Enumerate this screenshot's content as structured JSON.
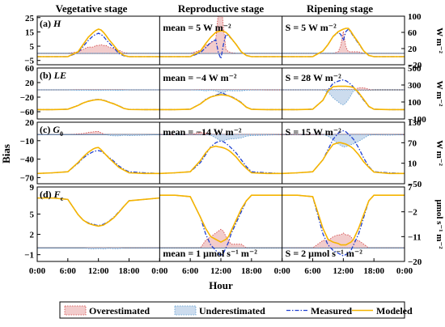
{
  "figure": {
    "stages": [
      "Vegetative stage",
      "Reproductive stage",
      "Ripening stage"
    ],
    "left_axis_label": "Bias",
    "x_axis_label": "Hour",
    "x_ticks": [
      "0:00",
      "6:00",
      "12:00",
      "18:00",
      "0:00",
      "6:00",
      "12:00",
      "18:00",
      "0:00",
      "6:00",
      "12:00",
      "18:00",
      "0:00"
    ],
    "legend": [
      {
        "label": "Overestimated",
        "kind": "fill",
        "color": "#f2cccc",
        "stroke": "#d04040"
      },
      {
        "label": "Underestimated",
        "kind": "fill",
        "color": "#ccdcee",
        "stroke": "#5a9ad0"
      },
      {
        "label": "Measured",
        "kind": "line",
        "color": "#1f3fd0"
      },
      {
        "label": "Modeled",
        "kind": "line",
        "color": "#f5b400"
      }
    ],
    "colors": {
      "over_fill": "#f2cccc",
      "over_line": "#d04040",
      "under_fill": "#ccdcee",
      "under_line": "#5a9ad0",
      "measured": "#1f3fd0",
      "modeled": "#f5b400"
    }
  },
  "chart_data": [
    {
      "type": "line",
      "panel": "(a)",
      "variable": "H",
      "mean_text": "mean = 5 W m⁻²",
      "s_text": "S = 5 W m⁻²",
      "right_unit": "W m⁻²",
      "left_ticks": [
        25,
        15,
        5,
        -5
      ],
      "left_range": [
        -8,
        26
      ],
      "right_ticks": [
        100,
        60,
        20,
        -20
      ],
      "right_range": [
        -20,
        100
      ],
      "x_hours": [
        0,
        3,
        6,
        8,
        9,
        10,
        11,
        11.5,
        12,
        12.5,
        13,
        13.5,
        14,
        15,
        16,
        17,
        18,
        21,
        24
      ],
      "stages": [
        {
          "stage": "Vegetative stage",
          "measured": [
            0,
            0,
            0,
            10,
            25,
            40,
            52,
            55,
            58,
            55,
            50,
            42,
            35,
            22,
            8,
            2,
            0,
            0,
            0
          ],
          "modeled": [
            0,
            0,
            0,
            12,
            30,
            48,
            60,
            65,
            68,
            66,
            60,
            52,
            43,
            28,
            12,
            3,
            0,
            0,
            0
          ]
        },
        {
          "stage": "Reproductive stage",
          "measured": [
            0,
            0,
            0,
            10,
            22,
            35,
            42,
            10,
            -5,
            30,
            55,
            52,
            45,
            30,
            12,
            3,
            0,
            0,
            0
          ],
          "modeled": [
            0,
            0,
            0,
            14,
            32,
            48,
            60,
            62,
            64,
            63,
            60,
            54,
            46,
            30,
            12,
            3,
            0,
            0,
            0
          ]
        },
        {
          "stage": "Ripening stage",
          "measured": [
            0,
            0,
            0,
            14,
            30,
            50,
            60,
            55,
            40,
            62,
            68,
            60,
            50,
            32,
            14,
            3,
            0,
            0,
            0
          ],
          "modeled": [
            0,
            0,
            0,
            14,
            30,
            50,
            62,
            65,
            68,
            70,
            70,
            62,
            52,
            34,
            14,
            3,
            0,
            0,
            0
          ]
        }
      ]
    },
    {
      "type": "line",
      "panel": "(b)",
      "variable": "LE",
      "mean_text": "mean = −4 W m⁻²",
      "s_text": "S = 28 W m⁻²",
      "right_unit": "W m⁻²",
      "left_ticks": [
        60,
        20,
        -20,
        -60
      ],
      "left_range": [
        -80,
        60
      ],
      "right_ticks": [
        500,
        300,
        100,
        -100
      ],
      "right_range": [
        -100,
        500
      ],
      "x_hours": [
        0,
        3,
        6,
        8,
        9,
        10,
        11,
        11.5,
        12,
        12.5,
        13,
        13.5,
        14,
        15,
        16,
        17,
        18,
        21,
        24
      ],
      "stages": [
        {
          "stage": "Vegetative stage",
          "measured": [
            10,
            10,
            15,
            60,
            90,
            110,
            125,
            128,
            130,
            128,
            120,
            112,
            100,
            80,
            55,
            25,
            12,
            10,
            10
          ],
          "modeled": [
            10,
            10,
            15,
            58,
            88,
            108,
            122,
            125,
            128,
            125,
            118,
            110,
            98,
            78,
            52,
            24,
            12,
            10,
            10
          ]
        },
        {
          "stage": "Reproductive stage",
          "measured": [
            10,
            10,
            15,
            80,
            130,
            160,
            180,
            190,
            210,
            200,
            185,
            175,
            165,
            135,
            95,
            40,
            15,
            10,
            10
          ],
          "modeled": [
            10,
            10,
            15,
            78,
            125,
            158,
            175,
            180,
            185,
            182,
            178,
            172,
            160,
            130,
            90,
            38,
            14,
            10,
            10
          ]
        },
        {
          "stage": "Ripening stage",
          "measured": [
            10,
            10,
            15,
            120,
            240,
            320,
            345,
            355,
            360,
            350,
            330,
            305,
            275,
            200,
            120,
            45,
            15,
            10,
            10
          ],
          "modeled": [
            10,
            10,
            15,
            120,
            230,
            280,
            285,
            285,
            285,
            285,
            282,
            278,
            270,
            210,
            130,
            48,
            15,
            10,
            10
          ]
        }
      ]
    },
    {
      "type": "line",
      "panel": "(c)",
      "variable": "G",
      "variable_sub": "0",
      "mean_text": "mean = −14 W m⁻²",
      "s_text": "S = 15 W m⁻²",
      "right_unit": "W m⁻²",
      "left_ticks": [
        20,
        -10,
        -40,
        -70
      ],
      "left_range": [
        -80,
        20
      ],
      "right_ticks": [
        130,
        70,
        10,
        -50
      ],
      "right_range": [
        -50,
        130
      ],
      "x_hours": [
        0,
        3,
        6,
        8,
        9,
        10,
        11,
        11.5,
        12,
        12.5,
        13,
        13.5,
        14,
        15,
        16,
        17,
        18,
        21,
        24
      ],
      "stages": [
        {
          "stage": "Vegetative stage",
          "measured": [
            -20,
            -18,
            -15,
            10,
            25,
            36,
            44,
            46,
            47,
            45,
            40,
            34,
            28,
            16,
            2,
            -8,
            -15,
            -18,
            -20
          ],
          "modeled": [
            -20,
            -18,
            -15,
            12,
            28,
            42,
            52,
            55,
            56,
            50,
            42,
            34,
            26,
            12,
            -2,
            -10,
            -18,
            -20,
            -20
          ]
        },
        {
          "stage": "Reproductive stage",
          "measured": [
            -20,
            -18,
            -15,
            12,
            35,
            58,
            70,
            73,
            75,
            73,
            68,
            62,
            55,
            40,
            20,
            0,
            -15,
            -18,
            -20
          ],
          "modeled": [
            -20,
            -18,
            -15,
            18,
            40,
            56,
            60,
            58,
            57,
            55,
            52,
            48,
            42,
            28,
            10,
            -5,
            -18,
            -20,
            -20
          ]
        },
        {
          "stage": "Ripening stage",
          "measured": [
            -20,
            -18,
            -15,
            20,
            50,
            80,
            98,
            102,
            105,
            102,
            95,
            88,
            80,
            55,
            25,
            0,
            -15,
            -18,
            -20
          ],
          "modeled": [
            -20,
            -18,
            -15,
            20,
            45,
            65,
            70,
            70,
            68,
            66,
            62,
            58,
            52,
            35,
            14,
            -2,
            -16,
            -20,
            -20
          ]
        }
      ]
    },
    {
      "type": "line",
      "panel": "(d)",
      "variable": "F",
      "variable_sub": "c",
      "mean_text": "mean = 1 μmol s⁻¹ m⁻²",
      "s_text": "S = 2 μmol s⁻¹ m⁻²",
      "right_unit": "μmol s⁻¹ m⁻²",
      "left_ticks": [
        9,
        5,
        2,
        -1
      ],
      "left_range": [
        -2,
        9
      ],
      "right_ticks": [
        7,
        -2,
        -11,
        -20
      ],
      "right_range": [
        -20,
        7
      ],
      "x_hours": [
        0,
        3,
        6,
        8,
        9,
        10,
        11,
        11.5,
        12,
        12.5,
        13,
        13.5,
        14,
        15,
        16,
        17,
        18,
        21,
        24
      ],
      "stages": [
        {
          "stage": "Vegetative stage",
          "measured": [
            3,
            3,
            2.5,
            -3,
            -5,
            -6,
            -6.5,
            -6.8,
            -7,
            -6.8,
            -6.5,
            -6,
            -5.5,
            -4,
            -2,
            0,
            2,
            2.5,
            3
          ],
          "modeled": [
            3,
            3,
            2.5,
            -3,
            -5,
            -6.2,
            -6.8,
            -7,
            -7.2,
            -7,
            -6.8,
            -6.2,
            -5.6,
            -4.2,
            -2.2,
            0,
            2,
            2.5,
            3
          ]
        },
        {
          "stage": "Reproductive stage",
          "measured": [
            4,
            4,
            3.5,
            -4,
            -10,
            -14,
            -16,
            -17,
            -18,
            -17,
            -15,
            -13,
            -10,
            -6,
            -2,
            2,
            4,
            4,
            4
          ],
          "modeled": [
            4,
            4,
            3.5,
            -4,
            -8,
            -11,
            -12,
            -12.5,
            -13,
            -12.5,
            -12,
            -11,
            -9,
            -5,
            -1,
            2,
            4,
            4,
            4
          ]
        },
        {
          "stage": "Ripening stage",
          "measured": [
            4,
            4,
            3.5,
            -10,
            -14,
            -16,
            -17,
            -17.5,
            -18,
            -17.5,
            -17,
            -16,
            -14,
            -10,
            -4,
            2,
            4,
            4,
            4
          ],
          "modeled": [
            4,
            4,
            3.5,
            -8,
            -12,
            -13,
            -13.5,
            -14,
            -14,
            -14,
            -13.5,
            -13,
            -12,
            -8,
            -3,
            2,
            4,
            4,
            4
          ]
        }
      ]
    }
  ]
}
